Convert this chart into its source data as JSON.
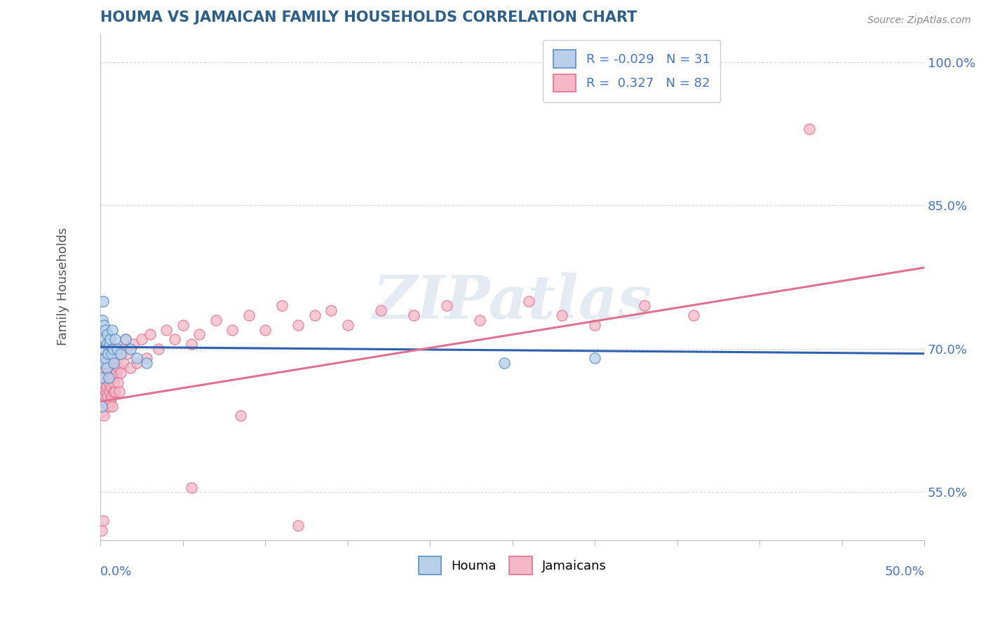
{
  "title": "HOUMA VS JAMAICAN FAMILY HOUSEHOLDS CORRELATION CHART",
  "source": "Source: ZipAtlas.com",
  "ylabel": "Family Households",
  "ylim": [
    50.0,
    103.0
  ],
  "xlim": [
    0.0,
    50.0
  ],
  "yticks": [
    55.0,
    70.0,
    85.0,
    100.0
  ],
  "houma_R": -0.029,
  "houma_N": 31,
  "jamaican_R": 0.327,
  "jamaican_N": 82,
  "houma_fill": "#b8d0ea",
  "houma_edge": "#5b8ec4",
  "jamaican_fill": "#f5b8c8",
  "jamaican_edge": "#e07090",
  "houma_line_color": "#3060b0",
  "jamaican_line_color": "#e07090",
  "watermark": "ZIPatlas",
  "background_color": "#ffffff",
  "grid_color": "#cccccc",
  "title_color": "#2c5f8a",
  "tick_color": "#4472c4",
  "houma_x": [
    0.05,
    0.08,
    0.1,
    0.12,
    0.15,
    0.18,
    0.2,
    0.22,
    0.25,
    0.28,
    0.3,
    0.35,
    0.38,
    0.4,
    0.45,
    0.5,
    0.55,
    0.6,
    0.65,
    0.7,
    0.75,
    0.8,
    0.9,
    1.0,
    1.2,
    1.5,
    1.8,
    2.2,
    2.8,
    24.5,
    30.0
  ],
  "houma_y": [
    64.0,
    67.0,
    70.0,
    73.0,
    75.0,
    72.5,
    70.0,
    68.5,
    71.0,
    69.0,
    72.0,
    70.5,
    68.0,
    71.5,
    69.5,
    67.0,
    70.5,
    71.0,
    69.5,
    72.0,
    70.0,
    68.5,
    71.0,
    70.0,
    69.5,
    71.0,
    70.0,
    69.0,
    68.5,
    68.5,
    69.0
  ],
  "jamaican_x": [
    0.03,
    0.05,
    0.07,
    0.09,
    0.1,
    0.12,
    0.14,
    0.16,
    0.18,
    0.2,
    0.22,
    0.25,
    0.28,
    0.3,
    0.32,
    0.35,
    0.38,
    0.4,
    0.42,
    0.45,
    0.48,
    0.5,
    0.52,
    0.55,
    0.58,
    0.6,
    0.62,
    0.65,
    0.68,
    0.7,
    0.72,
    0.75,
    0.78,
    0.8,
    0.85,
    0.9,
    0.95,
    1.0,
    1.05,
    1.1,
    1.15,
    1.2,
    1.3,
    1.4,
    1.5,
    1.6,
    1.8,
    2.0,
    2.2,
    2.5,
    2.8,
    3.0,
    3.5,
    4.0,
    4.5,
    5.0,
    5.5,
    6.0,
    7.0,
    8.0,
    9.0,
    10.0,
    11.0,
    12.0,
    13.0,
    14.0,
    15.0,
    17.0,
    19.0,
    21.0,
    23.0,
    26.0,
    28.0,
    30.0,
    33.0,
    36.0,
    8.5,
    5.5,
    12.0,
    43.0,
    0.08,
    0.15
  ],
  "jamaican_y": [
    64.5,
    66.0,
    63.5,
    67.0,
    65.0,
    68.0,
    64.5,
    66.5,
    63.0,
    67.5,
    65.0,
    69.0,
    64.5,
    67.0,
    65.5,
    68.5,
    66.0,
    69.5,
    65.0,
    67.5,
    64.0,
    66.5,
    68.0,
    65.5,
    67.0,
    64.5,
    66.0,
    68.5,
    65.0,
    67.5,
    64.0,
    67.0,
    65.5,
    66.5,
    68.0,
    65.5,
    67.5,
    69.0,
    66.5,
    68.0,
    65.5,
    67.5,
    70.0,
    68.5,
    71.0,
    69.5,
    68.0,
    70.5,
    68.5,
    71.0,
    69.0,
    71.5,
    70.0,
    72.0,
    71.0,
    72.5,
    70.5,
    71.5,
    73.0,
    72.0,
    73.5,
    72.0,
    74.5,
    72.5,
    73.5,
    74.0,
    72.5,
    74.0,
    73.5,
    74.5,
    73.0,
    75.0,
    73.5,
    72.5,
    74.5,
    73.5,
    63.0,
    55.5,
    51.5,
    93.0,
    51.0,
    52.0
  ]
}
